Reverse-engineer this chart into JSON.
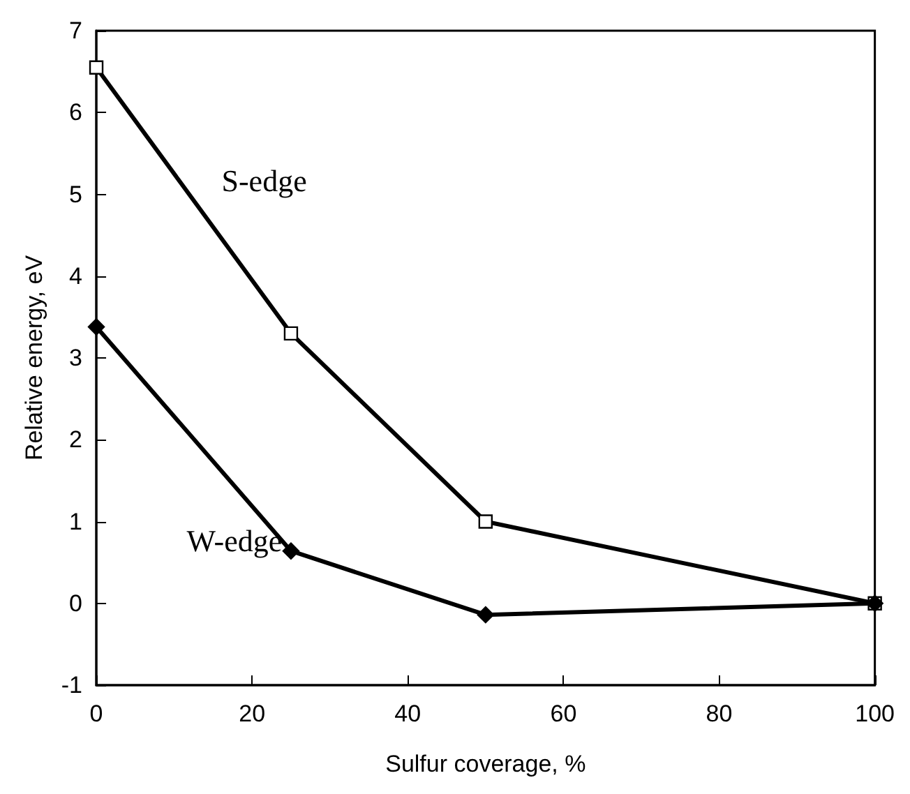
{
  "chart_data": {
    "type": "line",
    "xlabel": "Sulfur coverage, %",
    "ylabel": "Relative energy, eV",
    "x": [
      0,
      25,
      50,
      100
    ],
    "series": [
      {
        "name": "S-edge",
        "color": "#000000",
        "marker": "square",
        "values": [
          6.55,
          3.3,
          1.0,
          0.0
        ]
      },
      {
        "name": "W-edge",
        "color": "#000000",
        "marker": "diamond",
        "values": [
          3.38,
          0.64,
          -0.14,
          0.0
        ]
      }
    ],
    "xlim": [
      0,
      100
    ],
    "xticks": [
      0,
      20,
      40,
      60,
      80,
      100
    ],
    "ylim": [
      -1,
      7
    ],
    "yticks": [
      -1,
      0,
      1,
      2,
      3,
      4,
      5,
      6,
      7
    ],
    "grid": false,
    "legend": false,
    "line_style": "solid"
  }
}
